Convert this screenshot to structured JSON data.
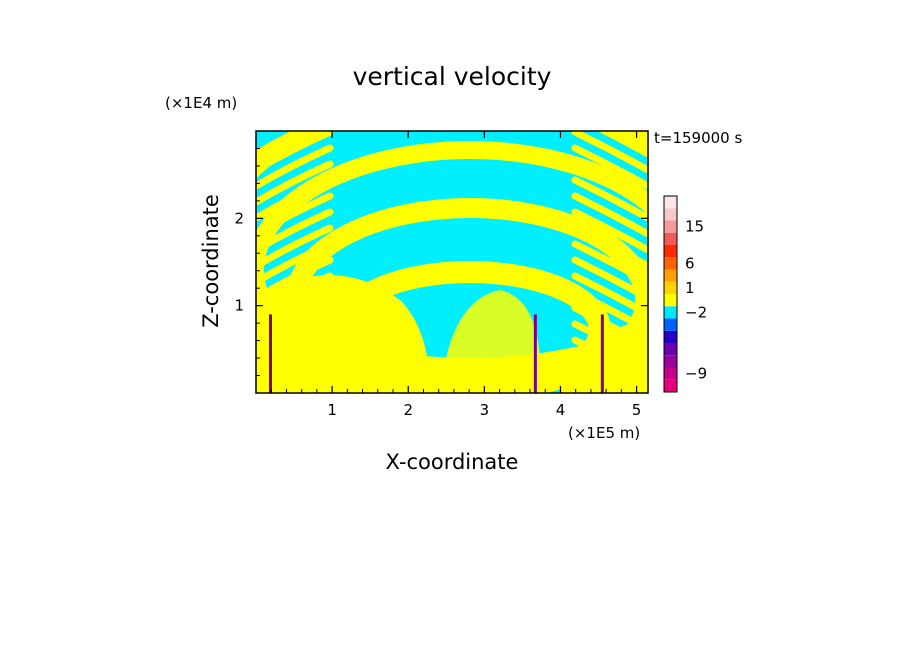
{
  "chart_data": {
    "type": "heatmap",
    "title": "vertical velocity",
    "xlabel": "X-coordinate",
    "ylabel": "Z-coordinate",
    "x_unit": "(×1E5 m)",
    "y_unit": "(×1E4 m)",
    "time_label": "t=159000 s",
    "xlim": [
      0,
      5.15
    ],
    "ylim": [
      0,
      3.0
    ],
    "x_ticks": [
      {
        "value": 1,
        "label": "1"
      },
      {
        "value": 2,
        "label": "2"
      },
      {
        "value": 3,
        "label": "3"
      },
      {
        "value": 4,
        "label": "4"
      },
      {
        "value": 5,
        "label": "5"
      }
    ],
    "y_ticks": [
      {
        "value": 1,
        "label": "1"
      },
      {
        "value": 2,
        "label": "2"
      }
    ],
    "colorbar": {
      "levels": [
        {
          "color": "#e6007e"
        },
        {
          "color": "#c8008c"
        },
        {
          "color": "#9a009a"
        },
        {
          "color": "#6a00b0"
        },
        {
          "color": "#2400c8"
        },
        {
          "color": "#0060ff"
        },
        {
          "color": "#00e6ff"
        },
        {
          "color": "#ffff00"
        },
        {
          "color": "#ffd200"
        },
        {
          "color": "#ffa000"
        },
        {
          "color": "#ff6400"
        },
        {
          "color": "#ff2a00"
        },
        {
          "color": "#f25a5a"
        },
        {
          "color": "#f49a9a"
        },
        {
          "color": "#f7c8c8"
        },
        {
          "color": "#fbe6e6"
        }
      ],
      "tick_labels": [
        {
          "label": "15",
          "level_index": 13
        },
        {
          "label": "6",
          "level_index": 10
        },
        {
          "label": "1",
          "level_index": 8
        },
        {
          "label": "−2",
          "level_index": 6
        },
        {
          "label": "−9",
          "level_index": 1
        }
      ]
    },
    "field": {
      "description": "alternating up/down vertical velocity bands; yellow = positive (~0 to 1), cyan = negative (~-2 to 0)",
      "positive_color": "#ffff00",
      "negative_color": "#00efff",
      "spike_color": "#7a0090",
      "spike_x": [
        0.19,
        3.67,
        4.55
      ]
    }
  }
}
